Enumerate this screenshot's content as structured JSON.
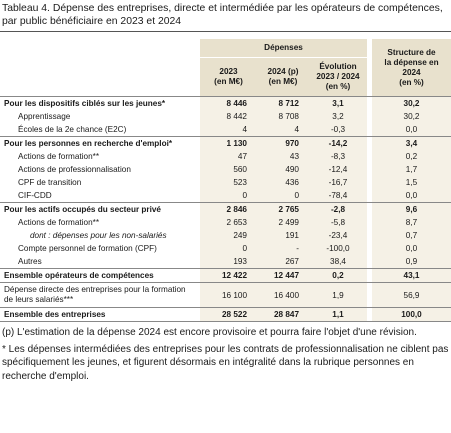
{
  "title": "Tableau 4. Dépense des entreprises, directe et intermédiée par les opérateurs de compétences, par public bénéficiaire en 2023 et 2024",
  "table": {
    "group_header": "Dépenses",
    "columns": [
      "2023\n(en M€)",
      "2024 (p)\n(en M€)",
      "Évolution\n2023 / 2024\n(en %)",
      "Structure de\nla dépense en\n2024\n(en %)"
    ],
    "sections": [
      {
        "rows": [
          {
            "style": "bold",
            "cells": [
              "Pour les dispositifs ciblés sur les jeunes*",
              "8 446",
              "8 712",
              "3,1",
              "30,2"
            ]
          },
          {
            "cells": [
              "Apprentissage",
              "8 442",
              "8 708",
              "3,2",
              "30,2"
            ]
          },
          {
            "cells": [
              "Écoles de la 2e chance (E2C)",
              "4",
              "4",
              "-0,3",
              "0,0"
            ]
          }
        ]
      },
      {
        "rows": [
          {
            "style": "bold",
            "cells": [
              "Pour les personnes en recherche d'emploi*",
              "1 130",
              "970",
              "-14,2",
              "3,4"
            ]
          },
          {
            "cells": [
              "Actions de formation**",
              "47",
              "43",
              "-8,3",
              "0,2"
            ]
          },
          {
            "cells": [
              "Actions de professionnalisation",
              "560",
              "490",
              "-12,4",
              "1,7"
            ]
          },
          {
            "cells": [
              "CPF de transition",
              "523",
              "436",
              "-16,7",
              "1,5"
            ]
          },
          {
            "cells": [
              "CIF-CDD",
              "0",
              "0",
              "-78,4",
              "0,0"
            ]
          }
        ]
      },
      {
        "rows": [
          {
            "style": "bold",
            "cells": [
              "Pour les actifs occupés du secteur privé",
              "2 846",
              "2 765",
              "-2,8",
              "9,6"
            ]
          },
          {
            "cells": [
              "Actions de formation**",
              "2 653",
              "2 499",
              "-5,8",
              "8,7"
            ]
          },
          {
            "style": "italic",
            "cells": [
              "dont : dépenses pour les non-salariés",
              "249",
              "191",
              "-23,4",
              "0,7"
            ]
          },
          {
            "cells": [
              "Compte personnel de formation (CPF)",
              "0",
              "-",
              "-100,0",
              "0,0"
            ]
          },
          {
            "cells": [
              "Autres",
              "193",
              "267",
              "38,4",
              "0,9"
            ]
          }
        ]
      }
    ],
    "totals": [
      {
        "style": "bold",
        "cells": [
          "Ensemble opérateurs de compétences",
          "12 422",
          "12 447",
          "0,2",
          "43,1"
        ]
      },
      {
        "cells": [
          "Dépense directe des entreprises pour la formation de leurs salariés***",
          "16 100",
          "16 400",
          "1,9",
          "56,9"
        ]
      },
      {
        "style": "bold",
        "cells": [
          "Ensemble des entreprises",
          "28 522",
          "28 847",
          "1,1",
          "100,0"
        ]
      }
    ]
  },
  "notes": [
    "(p) L'estimation de la dépense 2024 est encore provisoire et pourra faire l'objet d'une révision.",
    "* Les dépenses intermédiées des entreprises pour les contrats de professionnalisation ne ciblent pas spécifiquement les jeunes, et figurent désormais en intégralité dans la rubrique personnes en recherche d'emploi."
  ]
}
